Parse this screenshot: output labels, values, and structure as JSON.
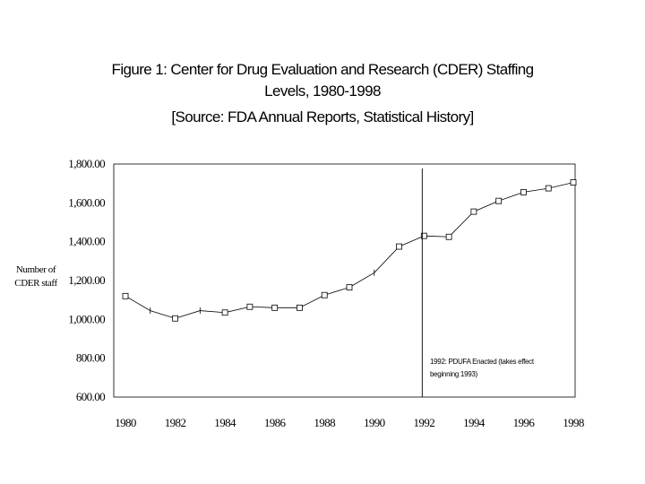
{
  "chart_data": {
    "type": "line",
    "title_lines": [
      "Figure 1: Center for Drug Evaluation and Research (CDER) Staffing",
      "Levels, 1980-1998",
      "[Source: FDA Annual Reports, Statistical History]"
    ],
    "ylabel_lines": [
      "Number of",
      "CDER staff"
    ],
    "xlabel": "",
    "ylim": [
      600,
      1800
    ],
    "yticks": [
      600,
      800,
      1000,
      1200,
      1400,
      1600,
      1800
    ],
    "ytick_labels": [
      "600.00",
      "800.00",
      "1,000.00",
      "1,200.00",
      "1,400.00",
      "1,600.00",
      "1,800.00"
    ],
    "xlim": [
      1980,
      1998
    ],
    "xticks": [
      1980,
      1982,
      1984,
      1986,
      1988,
      1990,
      1992,
      1994,
      1996,
      1998
    ],
    "xtick_labels": [
      "1980",
      "1982",
      "1984",
      "1986",
      "1988",
      "1990",
      "1992",
      "1994",
      "1996",
      "1998"
    ],
    "grid": false,
    "series": [
      {
        "name": "CDER staff",
        "x": [
          1980,
          1981,
          1982,
          1983,
          1984,
          1985,
          1986,
          1987,
          1988,
          1989,
          1990,
          1991,
          1992,
          1993,
          1994,
          1995,
          1996,
          1997,
          1998
        ],
        "y": [
          1120,
          1045,
          1005,
          1045,
          1035,
          1065,
          1060,
          1060,
          1125,
          1165,
          1240,
          1375,
          1430,
          1425,
          1555,
          1610,
          1655,
          1675,
          1705
        ],
        "markers": [
          "square",
          "dash",
          "square",
          "dash",
          "square",
          "square",
          "square",
          "square",
          "square",
          "square",
          "dash",
          "square",
          "square",
          "square",
          "square",
          "square",
          "square",
          "square",
          "square"
        ]
      }
    ],
    "annotation": {
      "x": 1992,
      "lines": [
        "1992: PDUFA Enacted (takes effect",
        "beginning 1993)"
      ]
    }
  }
}
